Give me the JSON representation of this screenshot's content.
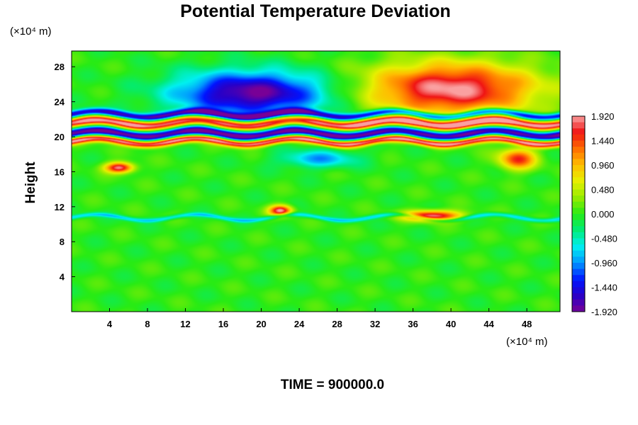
{
  "chart_data": {
    "type": "heatmap",
    "title": "Potential Temperature Deviation",
    "xlabel": "",
    "ylabel": "Height",
    "x_unit": "(×10⁴ m)",
    "y_unit": "(×10⁴ m)",
    "xlim": [
      0,
      51.5
    ],
    "ylim": [
      0,
      29.8
    ],
    "x_ticks": [
      4,
      8,
      12,
      16,
      20,
      24,
      28,
      32,
      36,
      40,
      44,
      48
    ],
    "y_ticks": [
      4,
      8,
      12,
      16,
      20,
      24,
      28
    ],
    "colorbar": {
      "min": -1.92,
      "max": 1.92,
      "labels": [
        "1.920",
        "1.440",
        "0.960",
        "0.480",
        "0.000",
        "-0.480",
        "-0.960",
        "-1.440",
        "-1.920"
      ],
      "label_values": [
        1.92,
        1.44,
        0.96,
        0.48,
        0.0,
        -0.48,
        -0.96,
        -1.44,
        -1.92
      ]
    },
    "features": [
      {
        "kind": "anomaly",
        "sign": "negative",
        "x_center": 19,
        "y_center": 25,
        "x_halfwidth": 8,
        "y_halfwidth": 2.5,
        "peak": -1.92
      },
      {
        "kind": "anomaly",
        "sign": "positive",
        "x_center": 40,
        "y_center": 25.5,
        "x_halfwidth": 9,
        "y_halfwidth": 3,
        "peak": 1.92
      },
      {
        "kind": "band",
        "sign": "negative",
        "y_center": 20.4,
        "y_halfwidth": 0.5,
        "peak": -1.92
      },
      {
        "kind": "band",
        "sign": "positive",
        "y_center": 21.6,
        "y_halfwidth": 0.5,
        "peak": 1.92
      },
      {
        "kind": "band",
        "sign": "positive",
        "y_center": 19.5,
        "y_halfwidth": 0.4,
        "peak": 1.92
      },
      {
        "kind": "band",
        "sign": "negative",
        "y_center": 22.6,
        "y_halfwidth": 0.4,
        "peak": -1.6
      },
      {
        "kind": "patch",
        "sign": "positive",
        "x_center": 5,
        "y_center": 16.5,
        "x_halfwidth": 1.5,
        "y_halfwidth": 0.6,
        "peak": 1.9
      },
      {
        "kind": "patch",
        "sign": "positive",
        "x_center": 22,
        "y_center": 11.6,
        "x_halfwidth": 1.2,
        "y_halfwidth": 0.6,
        "peak": 1.9
      },
      {
        "kind": "patch",
        "sign": "positive",
        "x_center": 38,
        "y_center": 11,
        "x_halfwidth": 3,
        "y_halfwidth": 0.6,
        "peak": 1.9
      },
      {
        "kind": "patch",
        "sign": "positive",
        "x_center": 47,
        "y_center": 17.5,
        "x_halfwidth": 2,
        "y_halfwidth": 1.2,
        "peak": 1.5
      },
      {
        "kind": "patch",
        "sign": "negative",
        "x_center": 26,
        "y_center": 17.5,
        "x_halfwidth": 4,
        "y_halfwidth": 1,
        "peak": -0.9
      },
      {
        "kind": "band",
        "sign": "negative",
        "y_center": 10.8,
        "y_halfwidth": 0.25,
        "x_from": 0,
        "x_to": 51.5,
        "peak": -0.7
      }
    ]
  },
  "footer": {
    "time_label": "TIME = 900000.0"
  }
}
